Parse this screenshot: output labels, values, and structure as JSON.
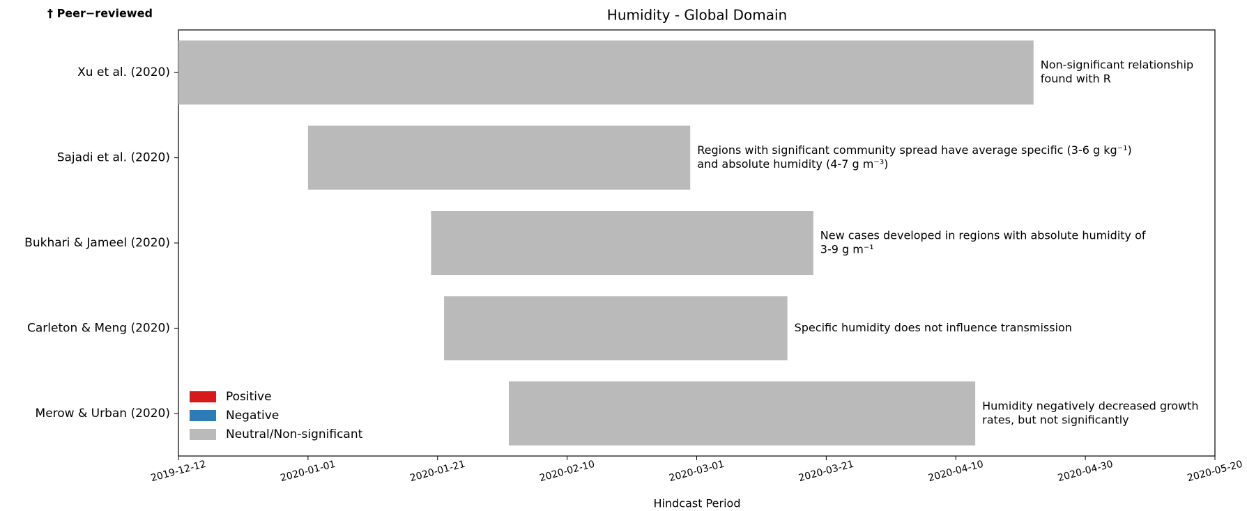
{
  "chart_data": {
    "type": "gantt",
    "title": "Humidity - Global Domain",
    "corner_label": "† Peer−reviewed",
    "x_label": "Hindcast Period",
    "xlim": [
      "2019-12-12",
      "2020-05-20"
    ],
    "xticks": [
      "2019-12-12",
      "2020-01-01",
      "2020-01-21",
      "2020-02-10",
      "2020-03-01",
      "2020-03-21",
      "2020-04-10",
      "2020-04-30",
      "2020-05-20"
    ],
    "categories": [
      "Xu et al. (2020)",
      "Sajadi et al. (2020)",
      "Bukhari & Jameel (2020)",
      "Carleton & Meng (2020)",
      "Merow & Urban (2020)"
    ],
    "bars": [
      {
        "start": "2019-12-12",
        "end": "2020-04-22",
        "color": "#bababa",
        "annotation": [
          "Non-significant relationship",
          "found with R"
        ]
      },
      {
        "start": "2020-01-01",
        "end": "2020-02-29",
        "color": "#bababa",
        "annotation": [
          "Regions with significant community spread have average specific (3-6 g kg⁻¹)",
          "and absolute humidity (4-7 g m⁻³)"
        ]
      },
      {
        "start": "2020-01-20",
        "end": "2020-03-19",
        "color": "#bababa",
        "annotation": [
          "New cases developed in regions with absolute humidity of",
          "3-9 g m⁻¹"
        ]
      },
      {
        "start": "2020-01-22",
        "end": "2020-03-15",
        "color": "#bababa",
        "annotation": [
          "Specific humidity does not influence transmission"
        ]
      },
      {
        "start": "2020-02-01",
        "end": "2020-04-13",
        "color": "#bababa",
        "annotation": [
          "Humidity negatively decreased growth",
          "rates, but not significantly"
        ]
      }
    ],
    "legend": {
      "position": "lower left",
      "entries": [
        {
          "name": "Positive",
          "color": "#d7191c"
        },
        {
          "name": "Negative",
          "color": "#2c7bb6"
        },
        {
          "name": "Neutral/Non-significant",
          "color": "#bababa"
        }
      ]
    }
  }
}
